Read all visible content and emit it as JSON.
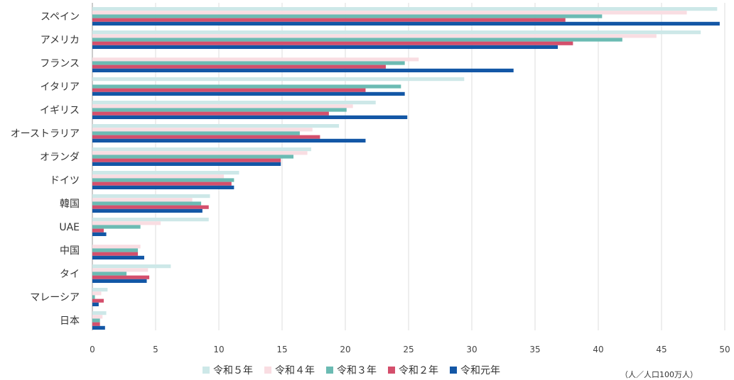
{
  "chart_data": {
    "type": "bar",
    "orientation": "horizontal",
    "categories": [
      "スペイン",
      "アメリカ",
      "フランス",
      "イタリア",
      "イギリス",
      "オーストラリア",
      "オランダ",
      "ドイツ",
      "韓国",
      "UAE",
      "中国",
      "タイ",
      "マレーシア",
      "日本"
    ],
    "series": [
      {
        "name": "令和５年",
        "color": "#cde8e8",
        "values": [
          49.4,
          48.1,
          0,
          29.4,
          22.4,
          19.5,
          17.3,
          11.6,
          9.3,
          9.2,
          0,
          6.2,
          1.2,
          1.1
        ]
      },
      {
        "name": "令和４年",
        "color": "#f9dde2",
        "values": [
          47.0,
          44.6,
          25.8,
          0,
          20.6,
          17.4,
          17.0,
          10.4,
          7.9,
          5.4,
          3.8,
          4.4,
          0.7,
          0.8
        ]
      },
      {
        "name": "令和３年",
        "color": "#6bbbb3",
        "values": [
          40.3,
          41.9,
          24.7,
          24.4,
          20.1,
          16.4,
          15.9,
          11.2,
          8.6,
          3.8,
          3.6,
          2.7,
          0.2,
          0.6
        ]
      },
      {
        "name": "令和２年",
        "color": "#d44f6c",
        "values": [
          37.4,
          38.0,
          23.2,
          21.6,
          18.7,
          18.0,
          14.9,
          11.0,
          9.2,
          0.9,
          3.6,
          4.5,
          0.9,
          0.6
        ]
      },
      {
        "name": "令和元年",
        "color": "#1357a6",
        "values": [
          49.6,
          36.8,
          33.3,
          24.7,
          24.9,
          21.6,
          14.9,
          11.2,
          8.7,
          1.1,
          4.1,
          4.3,
          0.5,
          1.0
        ]
      }
    ],
    "xlim": [
      0,
      50
    ],
    "xticks": [
      0,
      5,
      10,
      15,
      20,
      25,
      30,
      35,
      40,
      45,
      50
    ],
    "xlabel": "",
    "ylabel": "",
    "grid": "vertical",
    "legend_position": "bottom",
    "unit_note": "（人／人口100万人）"
  }
}
